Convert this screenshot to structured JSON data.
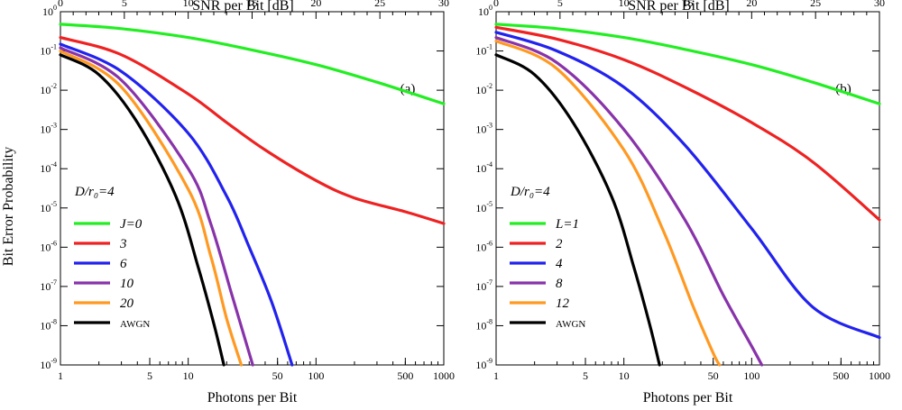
{
  "figure": {
    "ylabel": "Bit Error Probability"
  },
  "chart_data": [
    {
      "type": "line",
      "panel_label": "(a)",
      "xlabel": "Photons per Bit",
      "x2label": "SNR per Bit [dB]",
      "xscale": "log",
      "yscale": "log",
      "xlim": [
        1,
        1000
      ],
      "ylim": [
        1e-09,
        1
      ],
      "x_ticks": [
        1,
        5,
        10,
        50,
        100,
        500,
        1000
      ],
      "x_tick_labels": [
        "1",
        "5",
        "10",
        "50",
        "100",
        "500",
        "1000"
      ],
      "x2_ticks": [
        0,
        5,
        10,
        15,
        20,
        25,
        30
      ],
      "x2_tick_labels": [
        "0",
        "5",
        "10",
        "15",
        "20",
        "25",
        "30"
      ],
      "y_tick_exponents": [
        "0",
        "-1",
        "-2",
        "-3",
        "-4",
        "-5",
        "-6",
        "-7",
        "-8",
        "-9"
      ],
      "y_tick_base": "10",
      "parameter_label": "D/r₀=4",
      "legend_position": "left",
      "series": [
        {
          "name": "J=0",
          "color": "#22ee22",
          "x": [
            1,
            3,
            10,
            30,
            100,
            300,
            1000
          ],
          "y": [
            0.48,
            0.37,
            0.22,
            0.11,
            0.045,
            0.016,
            0.0045
          ]
        },
        {
          "name": "3",
          "color": "#ee2222",
          "x": [
            1,
            3,
            10,
            20,
            40,
            100,
            200,
            500,
            1000
          ],
          "y": [
            0.22,
            0.08,
            0.008,
            0.0015,
            0.0003,
            5e-05,
            1.8e-05,
            8e-06,
            4e-06
          ]
        },
        {
          "name": "6",
          "color": "#2222ee",
          "x": [
            1,
            3,
            10,
            20,
            30,
            45,
            65
          ],
          "y": [
            0.15,
            0.03,
            0.0008,
            2e-05,
            1e-06,
            4e-08,
            1e-09
          ]
        },
        {
          "name": "10",
          "color": "#8833aa",
          "x": [
            1,
            3,
            10,
            15,
            22,
            32
          ],
          "y": [
            0.12,
            0.018,
            0.0001,
            4e-06,
            6e-08,
            1e-09
          ]
        },
        {
          "name": "20",
          "color": "#ff9922",
          "x": [
            1,
            3,
            10,
            15,
            20,
            26
          ],
          "y": [
            0.1,
            0.012,
            3e-05,
            6e-07,
            1.5e-08,
            1e-09
          ]
        },
        {
          "name": "AWGN",
          "color": "#000000",
          "x": [
            1,
            2,
            4,
            8,
            12,
            16,
            19
          ],
          "y": [
            0.08,
            0.025,
            0.0015,
            2e-05,
            3e-07,
            1e-08,
            1e-09
          ]
        }
      ]
    },
    {
      "type": "line",
      "panel_label": "(b)",
      "xlabel": "Photons per Bit",
      "x2label": "SNR per Bit [dB]",
      "xscale": "log",
      "yscale": "log",
      "xlim": [
        1,
        1000
      ],
      "ylim": [
        1e-09,
        1
      ],
      "x_ticks": [
        1,
        5,
        10,
        50,
        100,
        500,
        1000
      ],
      "x_tick_labels": [
        "1",
        "5",
        "10",
        "50",
        "100",
        "500",
        "1000"
      ],
      "x2_ticks": [
        0,
        5,
        10,
        15,
        20,
        25,
        30
      ],
      "x2_tick_labels": [
        "0",
        "5",
        "10",
        "15",
        "20",
        "25",
        "30"
      ],
      "y_tick_exponents": [
        "0",
        "-1",
        "-2",
        "-3",
        "-4",
        "-5",
        "-6",
        "-7",
        "-8",
        "-9"
      ],
      "y_tick_base": "10",
      "parameter_label": "D/r₀=4",
      "legend_position": "left",
      "series": [
        {
          "name": "L=1",
          "color": "#22ee22",
          "x": [
            1,
            3,
            10,
            30,
            100,
            300,
            1000
          ],
          "y": [
            0.48,
            0.37,
            0.22,
            0.11,
            0.045,
            0.016,
            0.0045
          ]
        },
        {
          "name": "2",
          "color": "#ee2222",
          "x": [
            1,
            3,
            10,
            30,
            100,
            300,
            1000
          ],
          "y": [
            0.4,
            0.2,
            0.06,
            0.012,
            0.0015,
            0.00015,
            5e-06
          ]
        },
        {
          "name": "4",
          "color": "#2222ee",
          "x": [
            1,
            3,
            10,
            30,
            100,
            300,
            1000
          ],
          "y": [
            0.3,
            0.1,
            0.012,
            0.0004,
            3e-06,
            3e-08,
            5e-09
          ]
        },
        {
          "name": "8",
          "color": "#8833aa",
          "x": [
            1,
            3,
            10,
            30,
            60,
            100,
            120
          ],
          "y": [
            0.22,
            0.05,
            0.001,
            5e-06,
            6e-08,
            3e-09,
            1e-09
          ]
        },
        {
          "name": "12",
          "color": "#ff9922",
          "x": [
            1,
            3,
            10,
            20,
            35,
            50,
            56
          ],
          "y": [
            0.18,
            0.035,
            0.0003,
            3e-06,
            3e-08,
            2e-09,
            1e-09
          ]
        },
        {
          "name": "AWGN",
          "color": "#000000",
          "x": [
            1,
            2,
            4,
            8,
            12,
            16,
            19
          ],
          "y": [
            0.08,
            0.025,
            0.0015,
            2e-05,
            3e-07,
            1e-08,
            1e-09
          ]
        }
      ]
    }
  ]
}
